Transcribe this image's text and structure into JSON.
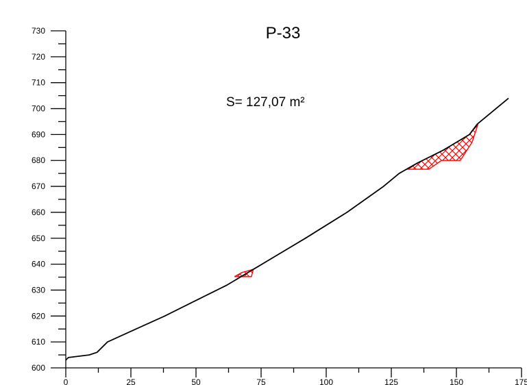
{
  "chart_data": {
    "type": "line",
    "title": "P-33",
    "annotation": "S= 127,07 m²",
    "xlabel": "",
    "ylabel": "",
    "xlim": [
      0,
      175
    ],
    "ylim": [
      600,
      730
    ],
    "x_ticks": [
      0,
      25,
      50,
      75,
      100,
      125,
      150,
      175
    ],
    "y_ticks": [
      600,
      610,
      620,
      630,
      640,
      650,
      660,
      670,
      680,
      690,
      700,
      710,
      720,
      730
    ],
    "grid": false,
    "colors": {
      "terrain": "#000000",
      "cut_area": "#ff0000"
    },
    "series": [
      {
        "values": [
          [
            0,
            603
          ],
          [
            1,
            604
          ],
          [
            9,
            605
          ],
          [
            12,
            606
          ],
          [
            16,
            610
          ],
          [
            27,
            615
          ],
          [
            38,
            620
          ],
          [
            50,
            626
          ],
          [
            62,
            632
          ],
          [
            72,
            638
          ],
          [
            82,
            644
          ],
          [
            92,
            650
          ],
          [
            100,
            655
          ],
          [
            108,
            660
          ],
          [
            115,
            665
          ],
          [
            122,
            670
          ],
          [
            128,
            675
          ],
          [
            135,
            679
          ],
          [
            145,
            684
          ],
          [
            155,
            690
          ],
          [
            158,
            694
          ],
          [
            164,
            699
          ],
          [
            170,
            704
          ]
        ]
      }
    ],
    "hatched_regions": [
      {
        "polygon": [
          [
            64.8,
            635.2
          ],
          [
            71.3,
            635.2
          ],
          [
            72.0,
            638.0
          ],
          [
            67.7,
            636.8
          ]
        ]
      },
      {
        "polygon": [
          [
            131.5,
            676.6
          ],
          [
            139.4,
            676.6
          ],
          [
            144.3,
            680.0
          ],
          [
            151.5,
            680.0
          ],
          [
            156.0,
            687.0
          ],
          [
            158.3,
            694.0
          ],
          [
            155.0,
            690.0
          ],
          [
            145.0,
            684.0
          ],
          [
            135.0,
            679.0
          ]
        ]
      }
    ]
  }
}
